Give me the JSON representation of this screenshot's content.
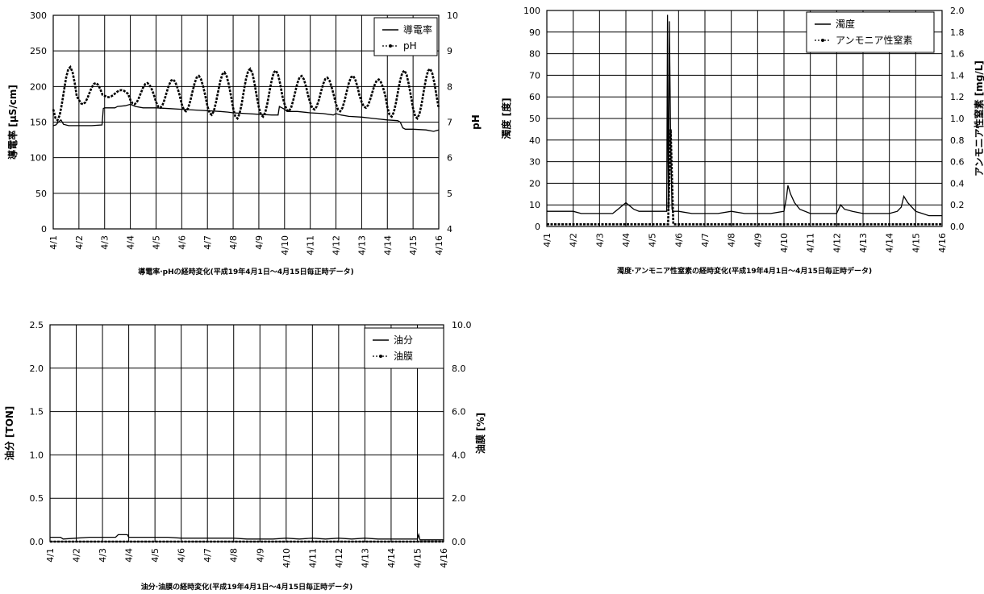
{
  "chart_data": [
    {
      "type": "line",
      "caption": "導電率·pHの経時変化(平成19年4月1日～4月15日毎正時データ)",
      "ylabel": "導電率 [μS/cm]",
      "y2label": "pH",
      "ylim": [
        0,
        300
      ],
      "y2lim": [
        4,
        10
      ],
      "yticks": [
        "0",
        "50",
        "100",
        "150",
        "200",
        "250",
        "300"
      ],
      "y2ticks": [
        "4",
        "5",
        "6",
        "7",
        "8",
        "9",
        "10"
      ],
      "xlim": [
        1,
        16
      ],
      "xticks": [
        "4/1",
        "4/2",
        "4/3",
        "4/4",
        "4/5",
        "4/6",
        "4/7",
        "4/8",
        "4/9",
        "4/10",
        "4/11",
        "4/12",
        "4/13",
        "4/14",
        "4/15",
        "4/16"
      ],
      "grid": true,
      "legend_position": "top-right",
      "series": [
        {
          "name": "導電率",
          "axis": "left",
          "x": [
            1.0,
            1.1,
            1.2,
            1.3,
            1.4,
            1.6,
            1.8,
            2.0,
            2.5,
            2.9,
            2.95,
            3.0,
            3.4,
            3.5,
            3.8,
            4.0,
            4.2,
            4.5,
            5.0,
            5.5,
            6.0,
            6.5,
            7.0,
            7.5,
            7.8,
            8.0,
            8.5,
            9.0,
            9.5,
            9.75,
            9.8,
            10.0,
            10.1,
            10.3,
            10.5,
            11.0,
            11.5,
            11.9,
            12.0,
            12.2,
            12.5,
            13.0,
            13.5,
            14.0,
            14.4,
            14.5,
            14.6,
            14.7,
            15.0,
            15.5,
            15.8,
            16.0
          ],
          "values": [
            145,
            146,
            150,
            153,
            147,
            145,
            145,
            145,
            145,
            146,
            169,
            170,
            170,
            172,
            173,
            175,
            172,
            170,
            170,
            169,
            168,
            167,
            166,
            165,
            164,
            163,
            162,
            161,
            160,
            160,
            172,
            168,
            165,
            165,
            165,
            163,
            162,
            160,
            162,
            160,
            158,
            157,
            155,
            153,
            152,
            150,
            142,
            140,
            140,
            139,
            137,
            139
          ]
        },
        {
          "name": "pH",
          "axis": "right",
          "marker": "dot",
          "oscillation": {
            "mid": 7.8,
            "amplitude": 0.45,
            "cycles_per_day": 1,
            "peak_at": 0.65,
            "peak_values": [
              8.55,
              8.1,
              7.9,
              8.1,
              8.2,
              8.3,
              8.4,
              8.5,
              8.45,
              8.3,
              8.25,
              8.3,
              8.2,
              8.45,
              8.5
            ]
          }
        }
      ]
    },
    {
      "type": "line",
      "caption": "濁度·アンモニア性窒素の経時変化(平成19年4月1日～4月15日毎正時データ)",
      "ylabel": "濁度 [度]",
      "y2label": "アンモニア性窒素 [mg/L]",
      "ylim": [
        0,
        100
      ],
      "y2lim": [
        0,
        2
      ],
      "yticks": [
        "0",
        "10",
        "20",
        "30",
        "40",
        "50",
        "60",
        "70",
        "80",
        "90",
        "100"
      ],
      "y2ticks": [
        "0.0",
        "0.2",
        "0.4",
        "0.6",
        "0.8",
        "1.0",
        "1.2",
        "1.4",
        "1.6",
        "1.8",
        "2.0"
      ],
      "xlim": [
        1,
        16
      ],
      "xticks": [
        "4/1",
        "4/2",
        "4/3",
        "4/4",
        "4/5",
        "4/6",
        "4/7",
        "4/8",
        "4/9",
        "4/10",
        "4/11",
        "4/12",
        "4/13",
        "4/14",
        "4/15",
        "4/16"
      ],
      "grid": true,
      "legend_position": "top-right",
      "series": [
        {
          "name": "濁度",
          "axis": "left",
          "x": [
            1.0,
            1.5,
            2.0,
            2.3,
            2.5,
            3.0,
            3.5,
            3.7,
            3.9,
            4.0,
            4.1,
            4.3,
            4.5,
            5.0,
            5.4,
            5.55,
            5.58,
            5.6,
            5.62,
            5.65,
            5.7,
            5.75,
            5.8,
            6.0,
            6.5,
            7.0,
            7.5,
            8.0,
            8.5,
            9.0,
            9.5,
            10.0,
            10.1,
            10.15,
            10.25,
            10.4,
            10.6,
            11.0,
            11.5,
            12.0,
            12.15,
            12.3,
            12.6,
            13.0,
            13.5,
            14.0,
            14.3,
            14.45,
            14.55,
            14.7,
            15.0,
            15.5,
            16.0
          ],
          "values": [
            7,
            7,
            7,
            6,
            6,
            6,
            6,
            8,
            10,
            11,
            10,
            8,
            7,
            7,
            7,
            7,
            98,
            30,
            8,
            95,
            40,
            8,
            7,
            7,
            6,
            6,
            6,
            7,
            6,
            6,
            6,
            7,
            14,
            19,
            15,
            11,
            8,
            6,
            6,
            6,
            10,
            8,
            7,
            6,
            6,
            6,
            7,
            9,
            14,
            11,
            7,
            5,
            5
          ]
        },
        {
          "name": "アンモニア性窒素",
          "axis": "right",
          "marker": "dot",
          "x": [
            1.0,
            2.0,
            3.0,
            4.0,
            5.0,
            5.6,
            5.7,
            5.8,
            5.9,
            6.0,
            7.0,
            8.0,
            9.0,
            10.0,
            11.0,
            12.0,
            13.0,
            14.0,
            15.0,
            16.0
          ],
          "values": [
            0.02,
            0.02,
            0.02,
            0.02,
            0.02,
            0.02,
            0.9,
            0.02,
            0.02,
            0.02,
            0.02,
            0.02,
            0.02,
            0.02,
            0.02,
            0.02,
            0.02,
            0.02,
            0.02,
            0.02
          ]
        }
      ]
    },
    {
      "type": "line",
      "caption": "油分·油膜の経時変化(平成19年4月1日～4月15日毎正時データ)",
      "ylabel": "油分 [TON]",
      "y2label": "油膜 [%]",
      "ylim": [
        0,
        2.5
      ],
      "y2lim": [
        0,
        10
      ],
      "yticks": [
        "0.0",
        "0.5",
        "1.0",
        "1.5",
        "2.0",
        "2.5"
      ],
      "y2ticks": [
        "0.0",
        "2.0",
        "4.0",
        "6.0",
        "8.0",
        "10.0"
      ],
      "xlim": [
        1,
        16
      ],
      "xticks": [
        "4/1",
        "4/2",
        "4/3",
        "4/4",
        "4/5",
        "4/6",
        "4/7",
        "4/8",
        "4/9",
        "4/10",
        "4/11",
        "4/12",
        "4/13",
        "4/14",
        "4/15",
        "4/16"
      ],
      "grid": true,
      "legend_position": "top-right",
      "series": [
        {
          "name": "油分",
          "axis": "left",
          "x": [
            1.0,
            1.4,
            1.5,
            2.0,
            2.5,
            3.0,
            3.5,
            3.6,
            3.95,
            4.0,
            4.5,
            5.0,
            5.5,
            6.0,
            6.5,
            7.0,
            7.5,
            8.0,
            8.5,
            9.0,
            9.5,
            10.0,
            10.5,
            11.0,
            11.5,
            12.0,
            12.5,
            13.0,
            13.5,
            14.0,
            14.5,
            15.0,
            15.05,
            15.1,
            15.5,
            16.0
          ],
          "values": [
            0.05,
            0.05,
            0.03,
            0.04,
            0.05,
            0.05,
            0.05,
            0.08,
            0.08,
            0.05,
            0.05,
            0.05,
            0.05,
            0.04,
            0.04,
            0.04,
            0.04,
            0.04,
            0.03,
            0.03,
            0.03,
            0.04,
            0.03,
            0.04,
            0.03,
            0.04,
            0.03,
            0.04,
            0.03,
            0.03,
            0.03,
            0.03,
            0.08,
            0.02,
            0.02,
            0.02
          ]
        },
        {
          "name": "油膜",
          "axis": "right",
          "marker": "dot",
          "x": [
            1.0,
            16.0
          ],
          "values": [
            0.0,
            0.0
          ]
        }
      ]
    }
  ]
}
